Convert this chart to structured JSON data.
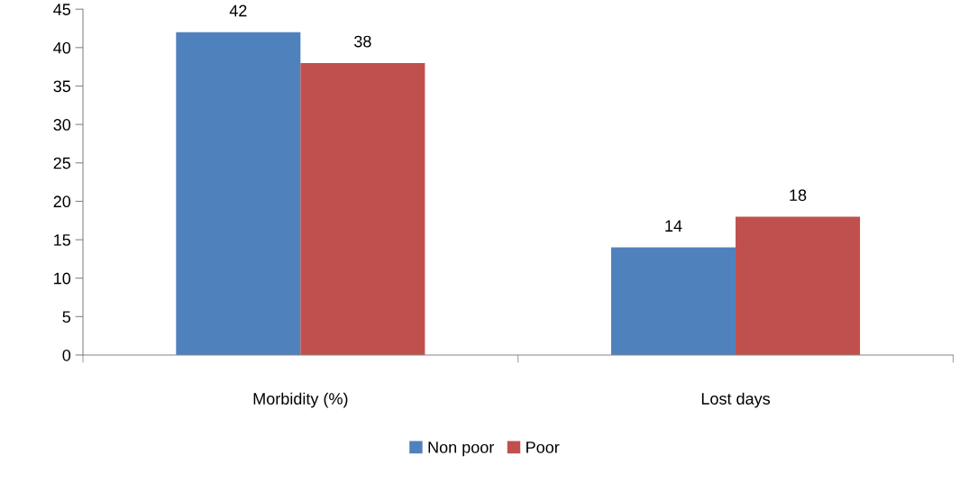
{
  "chart_data": {
    "type": "bar",
    "categories": [
      "Morbidity (%)",
      "Lost days"
    ],
    "series": [
      {
        "name": "Non poor",
        "color": "#4f81bd",
        "values": [
          42,
          14
        ]
      },
      {
        "name": "Poor",
        "color": "#c0504d",
        "values": [
          38,
          18
        ]
      }
    ],
    "ylim": [
      0,
      45
    ],
    "yticks": [
      0,
      5,
      10,
      15,
      20,
      25,
      30,
      35,
      40,
      45
    ],
    "grid": false,
    "legend": "bottom",
    "data_labels": true
  }
}
